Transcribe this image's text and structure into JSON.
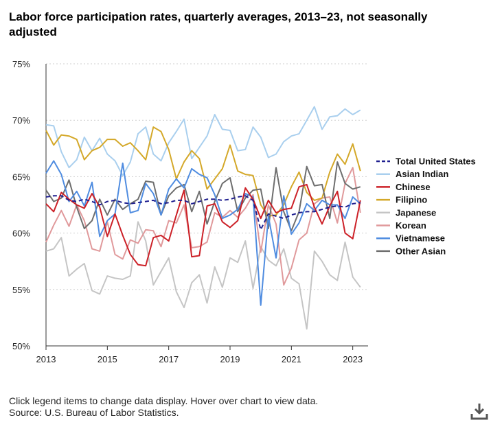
{
  "header": {
    "title": "Labor force participation rates, quarterly averages, 2013–23, not seasonally adjusted"
  },
  "footer": {
    "note": "Click legend items to change data display. Hover over chart to view data.",
    "source": "Source: U.S. Bureau of Labor Statistics."
  },
  "icons": {
    "download": "download-icon"
  },
  "chart_data": {
    "type": "line",
    "x_start": 2013.0,
    "x_step": 0.25,
    "xlim": [
      2013,
      2023.5
    ],
    "ylim": [
      50,
      75
    ],
    "x_ticks": [
      2013,
      2015,
      2017,
      2019,
      2021,
      2023
    ],
    "x_tick_labels": [
      "2013",
      "2015",
      "2017",
      "2019",
      "2021",
      "2023"
    ],
    "y_ticks": [
      50,
      55,
      60,
      65,
      70,
      75
    ],
    "y_tick_labels": [
      "50%",
      "55%",
      "60%",
      "65%",
      "70%",
      "75%"
    ],
    "grid": true,
    "legend_position": "right",
    "series": [
      {
        "name": "Total United States",
        "color": "#1f1f8f",
        "dashed": true,
        "values": [
          63.2,
          63.3,
          63.3,
          62.9,
          62.8,
          63.0,
          62.8,
          62.5,
          62.8,
          62.9,
          62.7,
          62.6,
          62.7,
          62.8,
          62.9,
          62.6,
          62.7,
          62.9,
          62.9,
          62.6,
          62.8,
          63.0,
          63.0,
          62.9,
          63.0,
          63.2,
          63.3,
          62.9,
          60.3,
          61.7,
          61.5,
          61.3,
          61.6,
          61.8,
          61.9,
          61.9,
          62.1,
          62.3,
          62.4,
          62.3,
          62.6,
          62.7
        ]
      },
      {
        "name": "Asian Indian",
        "color": "#a9cfee",
        "values": [
          69.6,
          69.5,
          67.2,
          65.8,
          66.5,
          68.5,
          67.3,
          68.4,
          67.0,
          66.4,
          65.1,
          66.3,
          68.8,
          69.4,
          67.0,
          66.4,
          68.0,
          69.0,
          70.1,
          66.6,
          67.6,
          68.6,
          70.5,
          69.2,
          69.1,
          67.3,
          67.4,
          69.4,
          68.5,
          66.7,
          67.0,
          68.1,
          68.6,
          68.8,
          70.0,
          71.2,
          69.2,
          70.3,
          70.4,
          71.0,
          70.5,
          70.9
        ]
      },
      {
        "name": "Chinese",
        "color": "#cc2027",
        "values": [
          62.6,
          61.9,
          63.6,
          63.0,
          62.5,
          62.2,
          63.5,
          62.3,
          59.7,
          61.7,
          59.8,
          58.1,
          57.2,
          57.1,
          59.6,
          59.8,
          59.3,
          61.6,
          63.8,
          57.9,
          58.0,
          62.4,
          62.6,
          61.0,
          60.5,
          61.1,
          64.0,
          63.0,
          61.3,
          62.9,
          61.8,
          62.1,
          62.2,
          64.1,
          64.3,
          62.3,
          60.8,
          62.4,
          63.7,
          60.0,
          59.5,
          62.9
        ]
      },
      {
        "name": "Filipino",
        "color": "#d4a829",
        "values": [
          69.1,
          67.8,
          68.7,
          68.6,
          68.3,
          66.5,
          67.3,
          67.6,
          68.3,
          68.3,
          67.7,
          68.0,
          67.3,
          66.5,
          69.4,
          69.0,
          67.4,
          64.8,
          66.3,
          67.3,
          66.6,
          63.9,
          64.8,
          65.7,
          67.8,
          65.5,
          65.2,
          65.1,
          62.5,
          61.5,
          61.6,
          62.5,
          64.1,
          65.4,
          63.6,
          62.9,
          63.1,
          65.4,
          67.0,
          66.1,
          67.9,
          65.5
        ]
      },
      {
        "name": "Japanese",
        "color": "#c5c5c5",
        "values": [
          58.4,
          58.6,
          59.6,
          56.2,
          56.8,
          57.3,
          54.9,
          54.6,
          56.2,
          56.0,
          55.9,
          56.2,
          61.0,
          59.3,
          55.4,
          56.6,
          57.8,
          54.8,
          53.4,
          55.6,
          56.3,
          53.8,
          57.0,
          55.2,
          57.8,
          57.4,
          59.3,
          55.1,
          58.8,
          57.6,
          57.1,
          58.6,
          56.0,
          55.5,
          51.5,
          58.4,
          57.5,
          56.3,
          55.8,
          59.2,
          56.1,
          55.2
        ]
      },
      {
        "name": "Korean",
        "color": "#e0999b",
        "values": [
          59.2,
          60.7,
          62.0,
          60.6,
          62.5,
          61.1,
          58.6,
          58.4,
          61.0,
          58.1,
          57.7,
          59.4,
          59.1,
          60.3,
          60.2,
          58.8,
          61.1,
          60.9,
          62.5,
          58.7,
          58.8,
          59.2,
          61.8,
          61.4,
          62.0,
          61.4,
          62.2,
          63.4,
          58.3,
          62.5,
          60.8,
          55.4,
          56.9,
          59.4,
          60.0,
          62.6,
          63.1,
          63.2,
          60.9,
          64.4,
          65.8,
          61.8
        ]
      },
      {
        "name": "Vietnamese",
        "color": "#4f8ce0",
        "values": [
          65.3,
          66.4,
          65.2,
          62.8,
          63.7,
          62.4,
          64.5,
          59.7,
          61.1,
          61.7,
          66.2,
          61.8,
          62.0,
          64.4,
          63.5,
          61.6,
          63.9,
          64.8,
          64.0,
          65.7,
          65.2,
          64.9,
          63.4,
          61.3,
          61.6,
          62.1,
          63.5,
          63.2,
          53.6,
          61.5,
          57.8,
          63.3,
          59.9,
          60.9,
          62.6,
          62.0,
          62.9,
          62.5,
          62.5,
          61.3,
          63.2,
          62.6
        ]
      },
      {
        "name": "Other Asian",
        "color": "#6e6e6e",
        "values": [
          63.8,
          62.8,
          63.1,
          64.7,
          62.3,
          60.4,
          61.1,
          63.0,
          61.6,
          63.0,
          62.1,
          62.6,
          63.0,
          64.6,
          64.5,
          61.6,
          63.3,
          64.0,
          64.3,
          61.9,
          63.7,
          60.8,
          62.8,
          64.4,
          64.9,
          61.9,
          63.1,
          63.8,
          63.9,
          60.4,
          65.8,
          61.9,
          60.2,
          61.9,
          65.9,
          64.2,
          64.3,
          61.3,
          66.3,
          64.4,
          63.9,
          64.1
        ]
      }
    ]
  }
}
